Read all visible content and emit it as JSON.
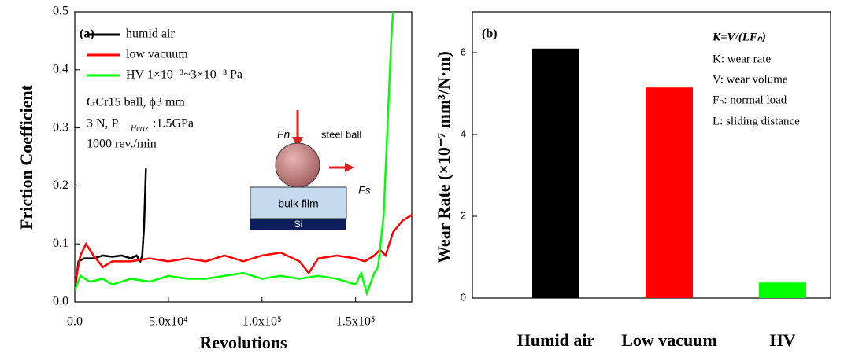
{
  "chart_data": [
    {
      "type": "line",
      "y_label": "Friction Coefficient",
      "x_label": "Revolutions",
      "xlim": [
        0,
        180000
      ],
      "ylim": [
        0,
        0.5
      ],
      "xticks": [
        {
          "value": 0,
          "label": "0.0"
        },
        {
          "value": 50000,
          "label": "5.0x10⁴"
        },
        {
          "value": 100000,
          "label": "1.0x10⁵"
        },
        {
          "value": 150000,
          "label": "1.5x10⁵"
        }
      ],
      "yticks": [
        {
          "value": 0,
          "label": "0.0"
        },
        0.1,
        0.2,
        0.3,
        0.4,
        0.5
      ],
      "annotations": [
        "(a)",
        "GCr15 ball, ϕ3 mm",
        "3 N, P",
        "Hertz",
        ":1.5GPa",
        "1000 rev./min",
        "Fn",
        "steel ball",
        "Fs",
        "bulk film",
        "Si"
      ],
      "series": [
        {
          "name": "humid air",
          "color": "#000000",
          "x": [
            0,
            2000,
            5000,
            10000,
            15000,
            20000,
            25000,
            30000,
            33000,
            35000,
            36000,
            37000,
            38000
          ],
          "values": [
            0.02,
            0.07,
            0.075,
            0.075,
            0.08,
            0.078,
            0.08,
            0.075,
            0.08,
            0.07,
            0.08,
            0.13,
            0.23
          ]
        },
        {
          "name": "low vacuum",
          "color": "#ff0000",
          "x": [
            0,
            3000,
            6000,
            10000,
            15000,
            20000,
            30000,
            40000,
            50000,
            60000,
            70000,
            80000,
            90000,
            100000,
            110000,
            120000,
            125000,
            130000,
            140000,
            150000,
            155000,
            160000,
            163000,
            166000,
            170000,
            175000,
            180000
          ],
          "values": [
            0.03,
            0.08,
            0.1,
            0.08,
            0.06,
            0.07,
            0.07,
            0.075,
            0.07,
            0.075,
            0.07,
            0.08,
            0.07,
            0.08,
            0.085,
            0.07,
            0.05,
            0.075,
            0.08,
            0.075,
            0.07,
            0.08,
            0.09,
            0.08,
            0.12,
            0.14,
            0.15
          ]
        },
        {
          "name": "HV 1×10⁻³~3×10⁻³ Pa",
          "color": "#00ff00",
          "x": [
            0,
            3000,
            8000,
            15000,
            20000,
            30000,
            40000,
            50000,
            60000,
            70000,
            80000,
            90000,
            100000,
            110000,
            120000,
            130000,
            140000,
            150000,
            153000,
            156000,
            160000,
            162000,
            165000,
            167000,
            169000,
            170000
          ],
          "values": [
            0.02,
            0.045,
            0.035,
            0.04,
            0.03,
            0.04,
            0.035,
            0.045,
            0.04,
            0.04,
            0.045,
            0.05,
            0.04,
            0.045,
            0.04,
            0.045,
            0.04,
            0.03,
            0.05,
            0.015,
            0.05,
            0.06,
            0.15,
            0.3,
            0.45,
            0.5
          ]
        }
      ]
    },
    {
      "type": "bar",
      "y_label": "Wear Rate (×10⁻⁷ mm³/N·m)",
      "categories": [
        "Humid air",
        "Low vacuum",
        "HV"
      ],
      "values": [
        6.1,
        5.15,
        0.38
      ],
      "colors": [
        "#000000",
        "#ff0000",
        "#00ff00"
      ],
      "ylim": [
        0,
        7
      ],
      "yticks": [
        0,
        2,
        4,
        6
      ],
      "annotations": [
        "(b)",
        "K=V/(LFₙ)",
        "K: wear rate",
        "V: wear volume",
        "Fₙ: normal load",
        "L: sliding distance"
      ]
    }
  ]
}
